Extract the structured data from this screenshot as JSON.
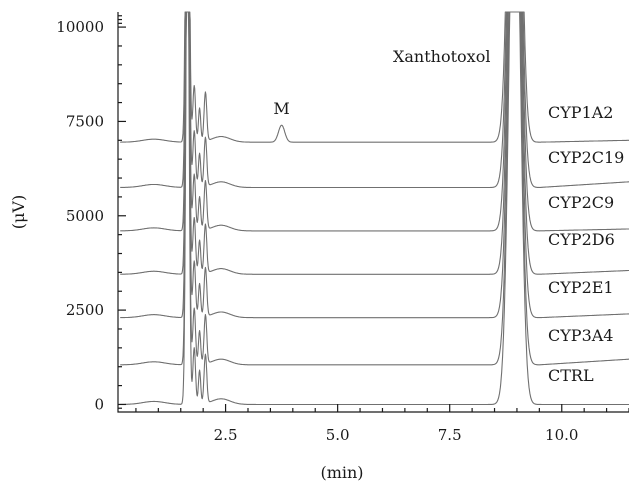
{
  "chart_data": {
    "type": "line",
    "xlabel": "(min)",
    "ylabel": "(μV)",
    "xlim": [
      0.1,
      11.5
    ],
    "ylim": [
      -200,
      10400
    ],
    "x_ticks": [
      2.5,
      5.0,
      7.5,
      10.0
    ],
    "x_tick_labels": [
      "2.5",
      "5.0",
      "7.5",
      "10.0"
    ],
    "y_ticks": [
      0,
      2500,
      5000,
      7500,
      10000
    ],
    "y_tick_labels": [
      "0",
      "2500",
      "5000",
      "7500",
      "10000"
    ],
    "grid": false,
    "annotations": [
      {
        "text": "M",
        "x": 3.75,
        "y": 7420
      },
      {
        "text": "Xanthotoxol",
        "x": 7.0,
        "y": 9150
      }
    ],
    "series": [
      {
        "name": "CYP1A2",
        "baseline": 6950,
        "baseline_end": 7000,
        "metabolite_peak": 450
      },
      {
        "name": "CYP2C19",
        "baseline": 5750,
        "baseline_end": 5900,
        "metabolite_peak": 0
      },
      {
        "name": "CYP2C9",
        "baseline": 4600,
        "baseline_end": 4650,
        "metabolite_peak": 0
      },
      {
        "name": "CYP2D6",
        "baseline": 3450,
        "baseline_end": 3550,
        "metabolite_peak": 0
      },
      {
        "name": "CYP2E1",
        "baseline": 2300,
        "baseline_end": 2400,
        "metabolite_peak": 0
      },
      {
        "name": "CYP3A4",
        "baseline": 1050,
        "baseline_end": 1200,
        "metabolite_peak": 0
      },
      {
        "name": "CTRL",
        "baseline": 0,
        "baseline_end": 0,
        "metabolite_peak": 0
      }
    ],
    "common_peaks_min": [
      1.65,
      1.8,
      1.92,
      2.05
    ],
    "xanthotoxol_peak_min": 8.95
  }
}
